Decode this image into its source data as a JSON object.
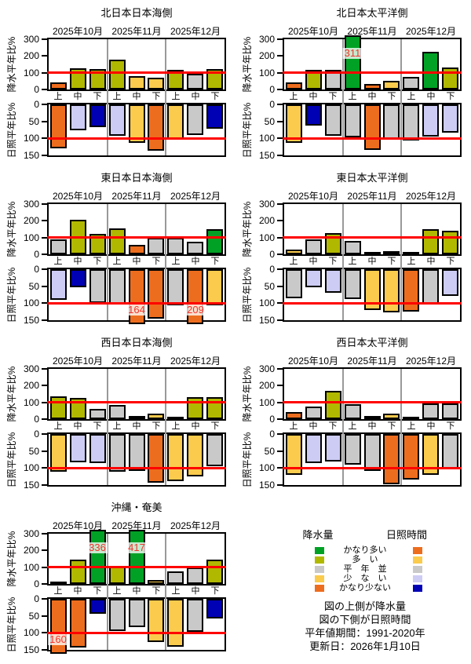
{
  "axis": {
    "precip_label": "降水平年比%",
    "sun_label": "日照平年比%",
    "months": [
      "2025年10月",
      "2025年11月",
      "2025年12月"
    ],
    "decades": [
      "上",
      "中",
      "下"
    ],
    "precip_ticks": [
      300,
      200,
      100,
      0
    ],
    "sun_ticks": [
      0,
      50,
      100,
      150
    ],
    "normal_line_value": 100
  },
  "colors": {
    "precip": {
      "much_more": "#00A125",
      "more": "#B1B800",
      "normal": "#C9C9C9",
      "less": "#FACB4D",
      "much_less": "#ED6D1E"
    },
    "sun": {
      "much_more": "#ED6D1E",
      "more": "#FACB4D",
      "normal": "#C9C9C9",
      "less": "#CCCCF5",
      "much_less": "#0000B4"
    },
    "normal_line": "#FF0000",
    "separator": "#999999",
    "bar_border": "#000000",
    "annotation": "#F2332B"
  },
  "chart_data": {
    "type": "bar",
    "ylabel_top": "降水平年比%",
    "ylabel_bottom": "日照平年比%",
    "ylim_top": [
      0,
      300
    ],
    "ylim_bottom": [
      0,
      150
    ],
    "panels": [
      {
        "title": "北日本日本海側",
        "precip": {
          "values": [
            43,
            126,
            122,
            177,
            82,
            71,
            117,
            93,
            122
          ],
          "cats": [
            "much_less",
            "more",
            "more",
            "more",
            "less",
            "less",
            "more",
            "normal",
            "more"
          ],
          "value_labels": {}
        },
        "sun": {
          "values": [
            130,
            75,
            67,
            92,
            114,
            137,
            104,
            91,
            71
          ],
          "cats": [
            "much_more",
            "less",
            "much_less",
            "less",
            "more",
            "much_more",
            "more",
            "normal",
            "much_less"
          ],
          "value_labels": {}
        }
      },
      {
        "title": "北日本太平洋側",
        "precip": {
          "values": [
            40,
            115,
            115,
            311,
            32,
            50,
            73,
            225,
            133
          ],
          "cats": [
            "much_less",
            "more",
            "normal",
            "much_more",
            "much_less",
            "less",
            "normal",
            "much_more",
            "more"
          ],
          "value_labels": {
            "3": "311"
          }
        },
        "sun": {
          "values": [
            113,
            62,
            93,
            97,
            133,
            103,
            107,
            94,
            82
          ],
          "cats": [
            "more",
            "much_less",
            "normal",
            "normal",
            "much_more",
            "normal",
            "normal",
            "less",
            "less"
          ],
          "value_labels": {}
        }
      },
      {
        "title": "東日本日本海側",
        "precip": {
          "values": [
            88,
            207,
            120,
            157,
            54,
            100,
            97,
            77,
            149
          ],
          "cats": [
            "normal",
            "more",
            "more",
            "more",
            "much_less",
            "normal",
            "normal",
            "normal",
            "much_more"
          ],
          "value_labels": {}
        },
        "sun": {
          "values": [
            89,
            53,
            99,
            101,
            164,
            145,
            105,
            209,
            105
          ],
          "cats": [
            "less",
            "much_less",
            "normal",
            "normal",
            "much_more",
            "much_more",
            "normal",
            "much_more",
            "more"
          ],
          "value_labels": {
            "4": "164",
            "7": "209"
          }
        }
      },
      {
        "title": "東日本太平洋側",
        "precip": {
          "values": [
            29,
            87,
            128,
            79,
            8,
            21,
            10,
            148,
            140
          ],
          "cats": [
            "less",
            "normal",
            "more",
            "normal",
            "much_less",
            "less",
            "much_less",
            "more",
            "more"
          ],
          "value_labels": {}
        },
        "sun": {
          "values": [
            86,
            52,
            69,
            88,
            119,
            126,
            125,
            101,
            78
          ],
          "cats": [
            "normal",
            "less",
            "less",
            "normal",
            "more",
            "more",
            "much_more",
            "normal",
            "less"
          ],
          "value_labels": {}
        }
      },
      {
        "title": "西日本日本海側",
        "precip": {
          "values": [
            138,
            127,
            59,
            84,
            20,
            34,
            15,
            132,
            132
          ],
          "cats": [
            "more",
            "more",
            "normal",
            "normal",
            "much_less",
            "less",
            "much_less",
            "more",
            "more"
          ],
          "value_labels": {}
        },
        "sun": {
          "values": [
            111,
            83,
            85,
            110,
            108,
            143,
            138,
            125,
            94
          ],
          "cats": [
            "more",
            "less",
            "less",
            "normal",
            "normal",
            "much_more",
            "more",
            "more",
            "normal"
          ],
          "value_labels": {}
        }
      },
      {
        "title": "西日本太平洋側",
        "precip": {
          "values": [
            44,
            75,
            168,
            87,
            20,
            33,
            4,
            93,
            93
          ],
          "cats": [
            "much_less",
            "normal",
            "more",
            "normal",
            "less",
            "less",
            "much_less",
            "normal",
            "normal"
          ],
          "value_labels": {}
        },
        "sun": {
          "values": [
            120,
            86,
            81,
            91,
            109,
            148,
            133,
            119,
            103
          ],
          "cats": [
            "more",
            "less",
            "less",
            "normal",
            "normal",
            "much_more",
            "much_more",
            "more",
            "normal"
          ],
          "value_labels": {}
        }
      },
      {
        "title": "沖縄・奄美",
        "precip": {
          "values": [
            15,
            145,
            336,
            108,
            417,
            25,
            74,
            98,
            145
          ],
          "cats": [
            "much_less",
            "more",
            "much_more",
            "more",
            "much_more",
            "less",
            "normal",
            "normal",
            "more"
          ],
          "value_labels": {
            "2": "336",
            "4": "417"
          }
        },
        "sun": {
          "values": [
            160,
            143,
            44,
            95,
            82,
            127,
            141,
            96,
            57
          ],
          "cats": [
            "much_more",
            "much_more",
            "much_less",
            "normal",
            "normal",
            "more",
            "more",
            "normal",
            "much_less"
          ],
          "value_labels": {
            "0": "160"
          }
        }
      }
    ]
  },
  "legend": {
    "precip_header": "降水量",
    "sun_header": "日照時間",
    "rows": [
      {
        "label": "かなり多い"
      },
      {
        "label": "多　い"
      },
      {
        "label": "平　年　並"
      },
      {
        "label": "少　な　い"
      },
      {
        "label": "かなり少ない"
      }
    ]
  },
  "notes": [
    "図の上側が降水量",
    "図の下側が日照時間",
    "平年値期間：1991-2020年",
    "更新日：2026年1月10日"
  ]
}
